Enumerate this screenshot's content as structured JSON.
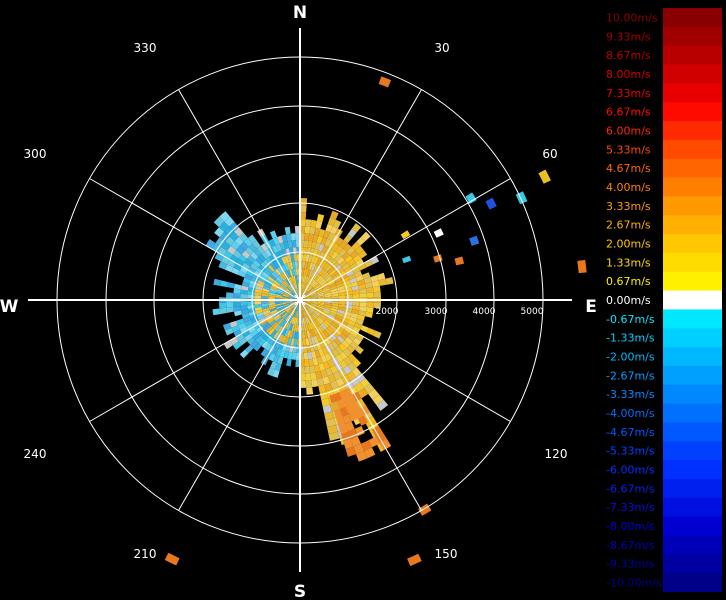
{
  "compass": {
    "n": "N",
    "e": "E",
    "s": "S",
    "w": "W"
  },
  "azimuth_labels": [
    "30",
    "60",
    "120",
    "150",
    "210",
    "240",
    "300",
    "330"
  ],
  "range_labels": [
    "2000",
    "3000",
    "4000",
    "5000"
  ],
  "legend": {
    "entries": [
      {
        "label": "10.00m/s",
        "color": "#8a0000"
      },
      {
        "label": "9.33m/s",
        "color": "#a00000"
      },
      {
        "label": "8.67m/s",
        "color": "#b80000"
      },
      {
        "label": "8.00m/s",
        "color": "#d00000"
      },
      {
        "label": "7.33m/s",
        "color": "#e80000"
      },
      {
        "label": "6.67m/s",
        "color": "#ff0a00"
      },
      {
        "label": "6.00m/s",
        "color": "#ff2a00"
      },
      {
        "label": "5.33m/s",
        "color": "#ff4a00"
      },
      {
        "label": "4.67m/s",
        "color": "#ff6600"
      },
      {
        "label": "4.00m/s",
        "color": "#ff8000"
      },
      {
        "label": "3.33m/s",
        "color": "#ff9900"
      },
      {
        "label": "2.67m/s",
        "color": "#ffb000"
      },
      {
        "label": "2.00m/s",
        "color": "#ffc800"
      },
      {
        "label": "1.33m/s",
        "color": "#ffdc00"
      },
      {
        "label": "0.67m/s",
        "color": "#fff000"
      },
      {
        "label": "0.00m/s",
        "color": "#ffffff"
      },
      {
        "label": "-0.67m/s",
        "color": "#00e8ff"
      },
      {
        "label": "-1.33m/s",
        "color": "#00d0ff"
      },
      {
        "label": "-2.00m/s",
        "color": "#00b8ff"
      },
      {
        "label": "-2.67m/s",
        "color": "#00a0ff"
      },
      {
        "label": "-3.33m/s",
        "color": "#0088ff"
      },
      {
        "label": "-4.00m/s",
        "color": "#0070ff"
      },
      {
        "label": "-4.67m/s",
        "color": "#0058ff"
      },
      {
        "label": "-5.33m/s",
        "color": "#0040ff"
      },
      {
        "label": "-6.00m/s",
        "color": "#0030ff"
      },
      {
        "label": "-6.67m/s",
        "color": "#0020f0"
      },
      {
        "label": "-7.33m/s",
        "color": "#0010e0"
      },
      {
        "label": "-8.00m/s",
        "color": "#0000d0"
      },
      {
        "label": "-8.67m/s",
        "color": "#0000b8"
      },
      {
        "label": "-9.33m/s",
        "color": "#0000a0"
      },
      {
        "label": "-10.00m/s",
        "color": "#000088"
      }
    ]
  }
}
